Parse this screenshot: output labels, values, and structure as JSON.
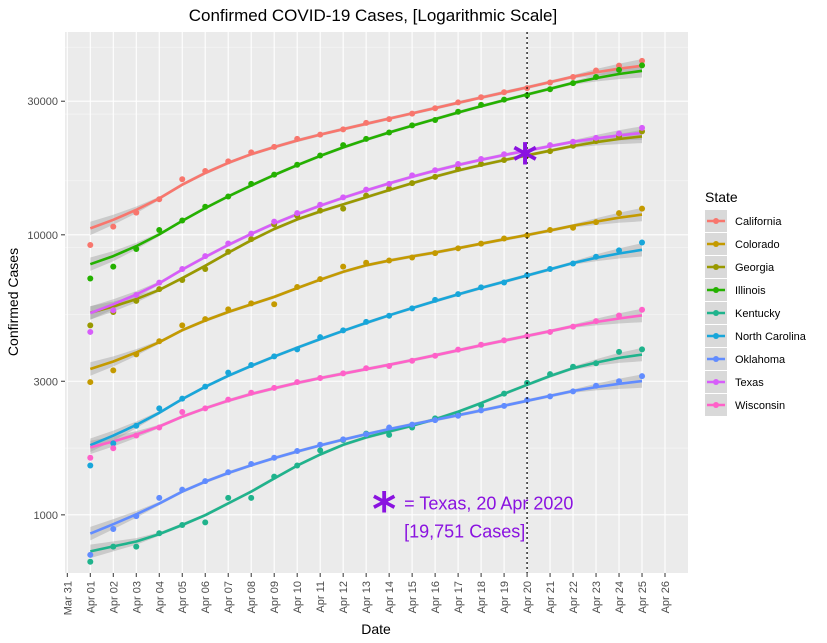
{
  "chart_data": {
    "type": "scatter",
    "title": "Confirmed COVID-19 Cases, [Logarithmic Scale]",
    "xlabel": "Date",
    "ylabel": "Confirmed Cases",
    "y_scale": "log",
    "ylim": [
      620,
      53000
    ],
    "y_ticks": [
      1000,
      3000,
      10000,
      30000
    ],
    "y_tick_labels": [
      "1000",
      "3000",
      "10000",
      "30000"
    ],
    "x_ticks": [
      "2020-03-31",
      "2020-04-01",
      "2020-04-02",
      "2020-04-03",
      "2020-04-04",
      "2020-04-05",
      "2020-04-06",
      "2020-04-07",
      "2020-04-08",
      "2020-04-09",
      "2020-04-10",
      "2020-04-11",
      "2020-04-12",
      "2020-04-13",
      "2020-04-14",
      "2020-04-15",
      "2020-04-16",
      "2020-04-17",
      "2020-04-18",
      "2020-04-19",
      "2020-04-20",
      "2020-04-21",
      "2020-04-22",
      "2020-04-23",
      "2020-04-24",
      "2020-04-25",
      "2020-04-26"
    ],
    "x_tick_labels": [
      "Mar 31",
      "Apr 01",
      "Apr 02",
      "Apr 03",
      "Apr 04",
      "Apr 05",
      "Apr 06",
      "Apr 07",
      "Apr 08",
      "Apr 09",
      "Apr 10",
      "Apr 11",
      "Apr 12",
      "Apr 13",
      "Apr 14",
      "Apr 15",
      "Apr 16",
      "Apr 17",
      "Apr 18",
      "Apr 19",
      "Apr 20",
      "Apr 21",
      "Apr 22",
      "Apr 23",
      "Apr 24",
      "Apr 25",
      "Apr 26"
    ],
    "x": [
      "2020-04-01",
      "2020-04-02",
      "2020-04-03",
      "2020-04-04",
      "2020-04-05",
      "2020-04-06",
      "2020-04-07",
      "2020-04-08",
      "2020-04-09",
      "2020-04-10",
      "2020-04-11",
      "2020-04-12",
      "2020-04-13",
      "2020-04-14",
      "2020-04-15",
      "2020-04-16",
      "2020-04-17",
      "2020-04-18",
      "2020-04-19",
      "2020-04-20",
      "2020-04-21",
      "2020-04-22",
      "2020-04-23",
      "2020-04-24",
      "2020-04-25"
    ],
    "grid": true,
    "smoothing": "loess with confidence band",
    "legend": {
      "title": "State",
      "position": "right"
    },
    "series": [
      {
        "name": "California",
        "color": "#F8766D",
        "values": [
          9200,
          10700,
          12000,
          13400,
          15800,
          16900,
          18300,
          19700,
          20600,
          22000,
          22800,
          23800,
          25100,
          25900,
          27100,
          28300,
          29700,
          31000,
          32300,
          33400,
          35000,
          36600,
          38600,
          40200,
          41800
        ]
      },
      {
        "name": "Colorado",
        "color": "#C49A00",
        "values": [
          2980,
          3280,
          3740,
          4170,
          4750,
          5000,
          5420,
          5690,
          5650,
          6510,
          6950,
          7700,
          7950,
          8100,
          8300,
          8600,
          8950,
          9300,
          9700,
          9950,
          10400,
          10600,
          11100,
          11950,
          12400
        ]
      },
      {
        "name": "Georgia",
        "color": "#999900",
        "values": [
          4750,
          5300,
          5810,
          6400,
          6900,
          7550,
          8700,
          9650,
          10900,
          11700,
          12200,
          12400,
          13800,
          14600,
          15300,
          16100,
          17200,
          17900,
          18500,
          19200,
          19900,
          20800,
          21600,
          22400,
          23400
        ]
      },
      {
        "name": "Illinois",
        "color": "#24B100",
        "values": [
          6980,
          7700,
          8900,
          10400,
          11250,
          12600,
          13700,
          15200,
          16400,
          17800,
          19200,
          20900,
          22000,
          23200,
          24600,
          25700,
          27500,
          29100,
          30400,
          31500,
          33100,
          34800,
          36600,
          38800,
          40300
        ]
      },
      {
        "name": "Kentucky",
        "color": "#1FB38C",
        "values": [
          680,
          770,
          770,
          860,
          920,
          940,
          1150,
          1150,
          1370,
          1500,
          1700,
          1850,
          1950,
          1930,
          2050,
          2210,
          2290,
          2460,
          2710,
          2960,
          3180,
          3380,
          3480,
          3820,
          3900
        ]
      },
      {
        "name": "North Carolina",
        "color": "#18A6DA",
        "values": [
          1500,
          1800,
          2080,
          2400,
          2600,
          2870,
          3220,
          3430,
          3680,
          3900,
          4310,
          4560,
          4890,
          5140,
          5460,
          5860,
          6140,
          6490,
          6760,
          7170,
          7550,
          7900,
          8350,
          8800,
          9390
        ]
      },
      {
        "name": "Oklahoma",
        "color": "#618CFF",
        "values": [
          720,
          890,
          990,
          1150,
          1230,
          1320,
          1420,
          1520,
          1600,
          1690,
          1780,
          1860,
          1940,
          2050,
          2100,
          2180,
          2260,
          2360,
          2450,
          2570,
          2650,
          2760,
          2890,
          3000,
          3130
        ]
      },
      {
        "name": "Texas",
        "color": "#D75DFA",
        "values": [
          4500,
          5380,
          6100,
          6750,
          7550,
          8390,
          9310,
          10100,
          11150,
          11950,
          12800,
          13600,
          14500,
          15200,
          16300,
          17000,
          17900,
          18650,
          19400,
          19750,
          20900,
          21500,
          22200,
          23000,
          24100
        ]
      },
      {
        "name": "Wisconsin",
        "color": "#FF61C9",
        "values": [
          1600,
          1730,
          1920,
          2050,
          2330,
          2400,
          2580,
          2730,
          2840,
          2980,
          3080,
          3200,
          3340,
          3400,
          3550,
          3700,
          3890,
          4050,
          4200,
          4350,
          4500,
          4700,
          4920,
          5150,
          5400
        ]
      }
    ],
    "annotation": {
      "vline_date": "2020-04-20",
      "marker_series": "Texas",
      "marker_date": "2020-04-20",
      "marker_value": 19751,
      "marker_symbol": "*",
      "color": "#8A12E0",
      "text_line1": "= Texas, 20 Apr 2020",
      "text_line2": "[19,751 Cases]"
    }
  }
}
